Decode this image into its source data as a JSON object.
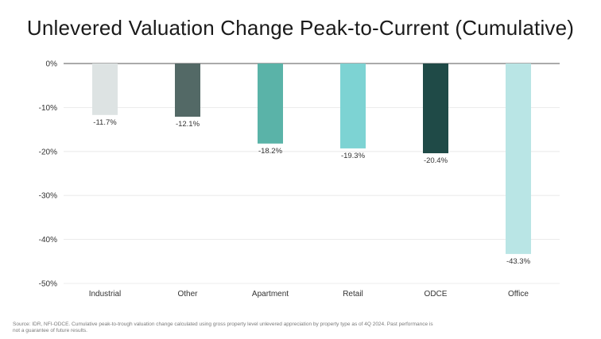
{
  "chart_data": {
    "type": "bar",
    "title": "Unlevered Valuation Change Peak-to-Current (Cumulative)",
    "xlabel": "",
    "ylabel": "",
    "categories": [
      "Industrial",
      "Other",
      "Apartment",
      "Retail",
      "ODCE",
      "Office"
    ],
    "values": [
      -11.7,
      -12.1,
      -18.2,
      -19.3,
      -20.4,
      -43.3
    ],
    "data_labels": [
      "-11.7%",
      "-12.1%",
      "-18.2%",
      "-19.3%",
      "-20.4%",
      "-43.3%"
    ],
    "bar_colors": [
      "#dde3e3",
      "#536966",
      "#5ab3a8",
      "#7dd3d3",
      "#1f4a47",
      "#b9e5e5"
    ],
    "ylim": [
      -50,
      0
    ],
    "yticks": [
      0,
      -10,
      -20,
      -30,
      -40,
      -50
    ],
    "ytick_labels": [
      "0%",
      "-10%",
      "-20%",
      "-30%",
      "-40%",
      "-50%"
    ],
    "grid": true,
    "legend": "none"
  },
  "footnote": {
    "line1": "Source: IDR, NFI-ODCE. Cumulative peak-to-trough valuation change calculated using gross property level unlevered appreciation by property type as of 4Q 2024. Past performance is",
    "line2": "not a guarantee of future results."
  }
}
